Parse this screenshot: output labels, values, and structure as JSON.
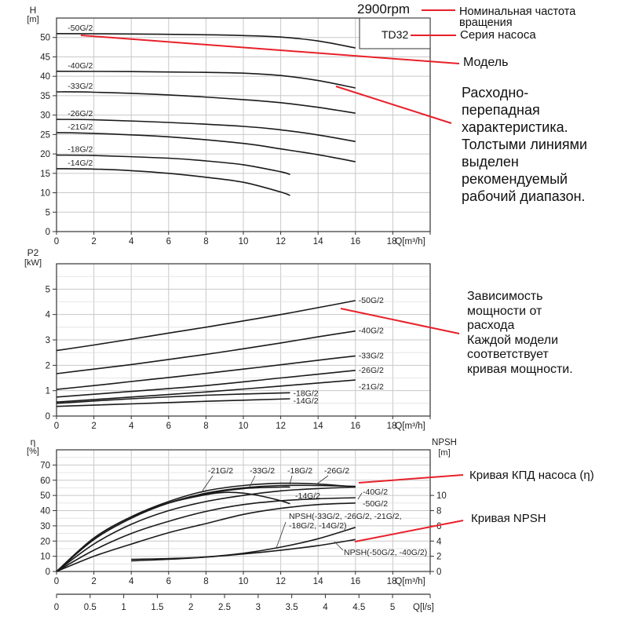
{
  "header": {
    "speed": "2900rpm",
    "series_badge": "TD32"
  },
  "annotations": {
    "speed": [
      "Номинальная частота",
      "вращения"
    ],
    "series": "Серия насоса",
    "model": "Модель",
    "head_curve": [
      "Расходно-",
      "перепадная",
      "характеристика.",
      "Толстыми линиями",
      "выделен",
      "рекомендуемый",
      "рабочий диапазон."
    ],
    "power_curve": [
      "Зависимость",
      "мощности от",
      "расхода",
      "Каждой модели",
      "соответствует",
      "кривая мощности."
    ],
    "efficiency_curve": "Кривая КПД насоса (η)",
    "npsh_curve": "Кривая NPSH",
    "accent_color": "#e8202a"
  },
  "chart_data": [
    {
      "type": "line",
      "ylabel": "H",
      "yunit": "[m]",
      "xlabel": "Q[m³/h]",
      "xlim": [
        0,
        20
      ],
      "ylim": [
        0,
        55
      ],
      "grid": true,
      "xticks": [
        "0",
        "2",
        "4",
        "6",
        "8",
        "10",
        "12",
        "14",
        "16",
        "18"
      ],
      "yticks": [
        "0",
        "5",
        "10",
        "15",
        "20",
        "25",
        "30",
        "35",
        "40",
        "45",
        "50"
      ],
      "series": [
        {
          "name": "-50G/2",
          "x": [
            0,
            4,
            8,
            10,
            12,
            14,
            16
          ],
          "y": [
            51,
            50.9,
            50.7,
            50.5,
            50.1,
            49.1,
            47.3
          ]
        },
        {
          "name": "-40G/2",
          "x": [
            0,
            4,
            8,
            10,
            12,
            14,
            16
          ],
          "y": [
            41.3,
            41.2,
            41.0,
            40.8,
            40.2,
            38.9,
            37.0
          ]
        },
        {
          "name": "-33G/2",
          "x": [
            0,
            2,
            6,
            10,
            12,
            14,
            16
          ],
          "y": [
            36.0,
            35.9,
            35.2,
            34.0,
            33.2,
            32.0,
            30.5
          ]
        },
        {
          "name": "-26G/2",
          "x": [
            0,
            2,
            6,
            10,
            12,
            14,
            16
          ],
          "y": [
            28.9,
            28.8,
            28.1,
            27.1,
            26.2,
            24.9,
            23.2
          ]
        },
        {
          "name": "-21G/2",
          "x": [
            0,
            2,
            6,
            10,
            12,
            14,
            16
          ],
          "y": [
            25.5,
            25.3,
            24.4,
            22.7,
            21.3,
            19.8,
            18.0
          ]
        },
        {
          "name": "-18G/2",
          "x": [
            0,
            2,
            6,
            8,
            10,
            12,
            12.5
          ],
          "y": [
            19.7,
            19.6,
            18.9,
            18.2,
            17.2,
            15.4,
            14.7
          ]
        },
        {
          "name": "-14G/2",
          "x": [
            0,
            2,
            4,
            6,
            8,
            10,
            12,
            12.5
          ],
          "y": [
            16.2,
            16.1,
            15.7,
            15.0,
            14.0,
            12.7,
            10.2,
            9.3
          ]
        }
      ]
    },
    {
      "type": "line",
      "ylabel": "P2",
      "yunit": "[kW]",
      "xlabel": "Q[m³/h]",
      "xlim": [
        0,
        20
      ],
      "ylim": [
        0,
        6
      ],
      "grid": true,
      "xticks": [
        "0",
        "2",
        "4",
        "6",
        "8",
        "10",
        "12",
        "14",
        "16",
        "18"
      ],
      "yticks": [
        "0",
        "1",
        "2",
        "3",
        "4",
        "5"
      ],
      "series": [
        {
          "name": "-50G/2",
          "x": [
            0,
            2,
            4,
            6,
            8,
            10,
            12,
            14,
            16
          ],
          "y": [
            2.58,
            2.8,
            3.03,
            3.27,
            3.5,
            3.75,
            4.0,
            4.27,
            4.55
          ]
        },
        {
          "name": "-40G/2",
          "x": [
            0,
            2,
            4,
            6,
            8,
            10,
            12,
            14,
            16
          ],
          "y": [
            1.67,
            1.85,
            2.03,
            2.23,
            2.43,
            2.65,
            2.88,
            3.12,
            3.35
          ]
        },
        {
          "name": "-33G/2",
          "x": [
            0,
            2,
            4,
            6,
            8,
            10,
            12,
            14,
            16
          ],
          "y": [
            1.05,
            1.2,
            1.36,
            1.52,
            1.68,
            1.85,
            2.02,
            2.2,
            2.37
          ]
        },
        {
          "name": "-26G/2",
          "x": [
            0,
            4,
            8,
            12,
            16
          ],
          "y": [
            0.75,
            0.97,
            1.2,
            1.5,
            1.8
          ]
        },
        {
          "name": "-21G/2",
          "x": [
            0,
            4,
            8,
            12,
            16
          ],
          "y": [
            0.55,
            0.75,
            0.95,
            1.18,
            1.42
          ]
        },
        {
          "name": "-18G/2",
          "x": [
            0,
            4,
            8,
            12.5
          ],
          "y": [
            0.5,
            0.68,
            0.82,
            0.92
          ]
        },
        {
          "name": "-14G/2",
          "x": [
            0,
            4,
            8,
            12.5
          ],
          "y": [
            0.38,
            0.48,
            0.58,
            0.68
          ]
        }
      ]
    },
    {
      "type": "line",
      "ylabel": "η",
      "yunit": "[%]",
      "xlabel": "Q[m³/h]",
      "y2label": "NPSH",
      "y2unit": "[m]",
      "xlim": [
        0,
        20
      ],
      "ylim": [
        0,
        80
      ],
      "y2lim": [
        0,
        16
      ],
      "grid": true,
      "xticks": [
        "0",
        "2",
        "4",
        "6",
        "8",
        "10",
        "12",
        "14",
        "16",
        "18"
      ],
      "yticks": [
        "0",
        "10",
        "20",
        "30",
        "40",
        "50",
        "60",
        "70"
      ],
      "y2ticks": [
        "0",
        "2",
        "4",
        "6",
        "8",
        "10"
      ],
      "x2label": "Q[l/s]",
      "x2lim": [
        0,
        5.56
      ],
      "x2ticks": [
        "0",
        "0.5",
        "1",
        "1.5",
        "2",
        "2.5",
        "3",
        "3.5",
        "4",
        "4.5",
        "5"
      ],
      "series": [
        {
          "name": "-21G/2",
          "x": [
            0,
            2,
            4,
            6,
            8,
            10,
            12,
            14,
            16
          ],
          "y": [
            0,
            22,
            36,
            46,
            53,
            56.5,
            58,
            57.5,
            55.5
          ]
        },
        {
          "name": "-33G/2",
          "x": [
            0,
            2,
            4,
            6,
            8,
            10,
            12,
            14,
            16
          ],
          "y": [
            0,
            18,
            31,
            40,
            46,
            50,
            53,
            54.5,
            55.5
          ]
        },
        {
          "name": "-18G/2",
          "x": [
            0,
            2,
            4,
            6,
            8,
            10,
            12,
            12.5
          ],
          "y": [
            0,
            21,
            35,
            45,
            51,
            54.5,
            55.5,
            55.5
          ]
        },
        {
          "name": "-26G/2",
          "x": [
            0,
            2,
            4,
            6,
            8,
            10,
            12,
            14,
            16
          ],
          "y": [
            0,
            21,
            35,
            45,
            51.5,
            55,
            56.5,
            56.5,
            56
          ]
        },
        {
          "name": "-14G/2",
          "x": [
            0,
            2,
            4,
            6,
            8,
            9,
            10,
            11,
            12,
            12.5
          ],
          "y": [
            0,
            22,
            36,
            45,
            50.5,
            52,
            51.5,
            49.5,
            46.5,
            44.5
          ]
        },
        {
          "name": "-40G/2",
          "x": [
            0,
            2,
            4,
            6,
            8,
            10,
            12,
            14,
            16
          ],
          "y": [
            0,
            14,
            25,
            33,
            39.5,
            44,
            46.5,
            47.8,
            48.5
          ]
        },
        {
          "name": "-50G/2",
          "x": [
            0,
            2,
            4,
            6,
            8,
            10,
            12,
            14,
            16
          ],
          "y": [
            0,
            10,
            18,
            25.5,
            31.5,
            37.5,
            41.5,
            44,
            45
          ]
        }
      ],
      "npsh_series": [
        {
          "name": "NPSH(-33G/2, -26G/2, -21G/2, -18G/2, -14G/2)",
          "label_lines": [
            "NPSH(-33G/2, -26G/2, -21G/2,",
            "-18G/2, -14G/2)"
          ],
          "x": [
            4,
            6,
            8,
            10,
            12,
            14,
            16
          ],
          "y": [
            1.4,
            1.6,
            1.9,
            2.4,
            3.2,
            4.3,
            5.8
          ]
        },
        {
          "name": "NPSH(-50G/2, -40G/2)",
          "label_lines": [
            "NPSH(-50G/2, -40G/2)"
          ],
          "x": [
            4,
            6,
            8,
            10,
            12,
            14,
            16
          ],
          "y": [
            1.6,
            1.7,
            1.9,
            2.3,
            2.8,
            3.4,
            4.2
          ]
        }
      ]
    }
  ]
}
